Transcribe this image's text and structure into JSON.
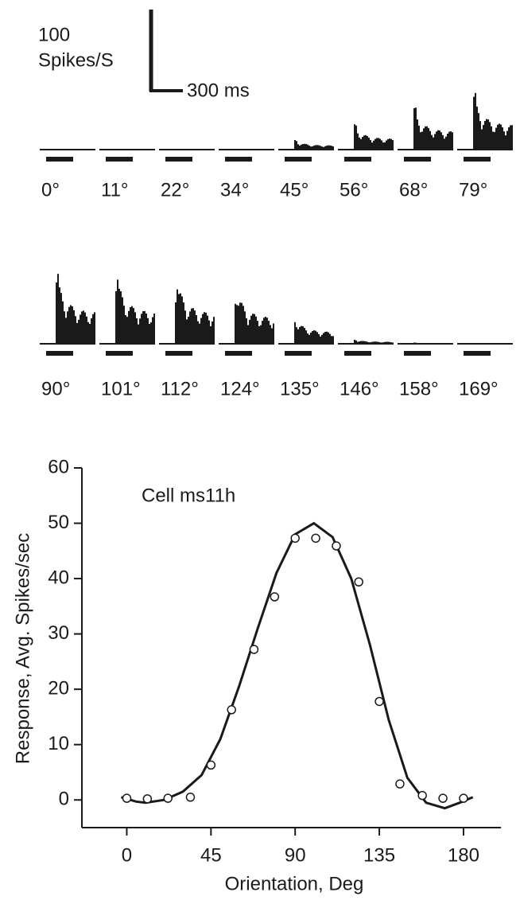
{
  "chart_data": [
    {
      "type": "psth",
      "scale_y_label": [
        "100",
        "Spikes/S"
      ],
      "scale_x_label": "300 ms",
      "categories": [
        "0°",
        "11°",
        "22°",
        "34°",
        "45°",
        "56°",
        "68°",
        "79°",
        "90°",
        "101°",
        "112°",
        "124°",
        "135°",
        "146°",
        "158°",
        "169°"
      ],
      "color": "#1a1a1a"
    },
    {
      "type": "scatter",
      "annotation": "Cell ms11h",
      "xlabel": "Orientation, Deg",
      "ylabel": "Response, Avg. Spikes/sec",
      "xlim": [
        -24,
        200
      ],
      "xticks": [
        0,
        45,
        90,
        135,
        180
      ],
      "ylim": [
        -5,
        60
      ],
      "yticks": [
        0,
        10,
        20,
        30,
        40,
        50,
        60
      ],
      "x": [
        0,
        11,
        22,
        34,
        45,
        56,
        68,
        79,
        90,
        101,
        112,
        124,
        135,
        146,
        158,
        169,
        180
      ],
      "values": [
        0.3,
        0.2,
        0.3,
        0.5,
        6.3,
        16.3,
        27.2,
        36.7,
        47.3,
        47.3,
        45.9,
        39.4,
        17.8,
        2.9,
        0.8,
        0.3,
        0.3
      ],
      "fit": {
        "x": [
          -3,
          5,
          10,
          20,
          30,
          40,
          50,
          60,
          70,
          80,
          90,
          100,
          110,
          120,
          130,
          140,
          150,
          160,
          170,
          178,
          185
        ],
        "values": [
          0.5,
          -0.3,
          -0.5,
          0,
          1.5,
          4.5,
          11,
          20.5,
          31,
          41,
          48,
          50,
          47.5,
          40,
          28,
          14.5,
          4,
          -0.5,
          -1.5,
          -0.5,
          0.5
        ]
      },
      "color": "#1a1a1a"
    }
  ]
}
